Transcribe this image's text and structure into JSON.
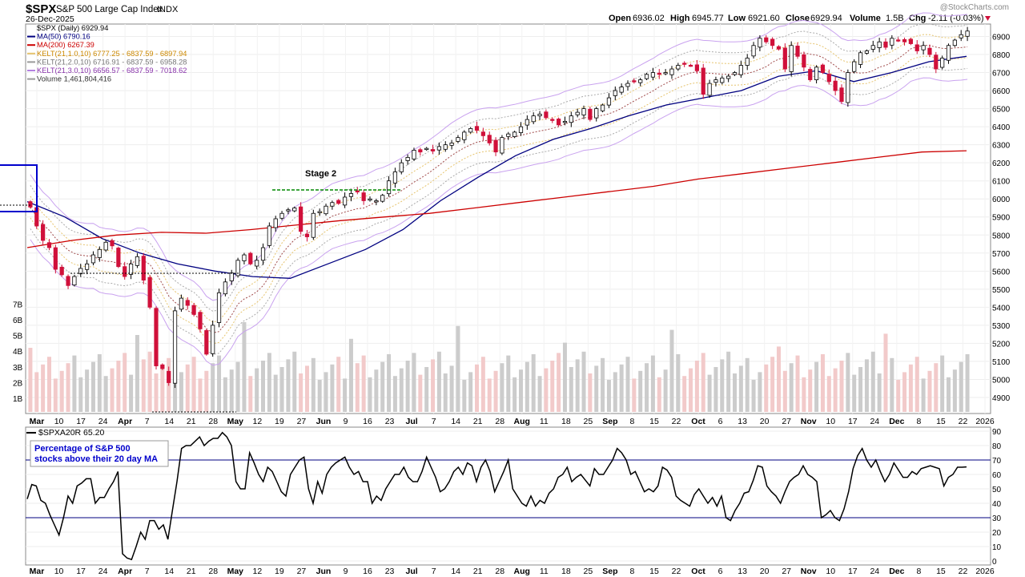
{
  "header": {
    "symbol": "$SPX",
    "name": "S&P 500 Large Cap Index",
    "exchange": "INDX",
    "date": "26-Dec-2025",
    "watermark": "@StockCharts.com",
    "quote": {
      "open_label": "Open",
      "open": "6936.02",
      "high_label": "High",
      "high": "6945.77",
      "low_label": "Low",
      "low": "6921.60",
      "close_label": "Close",
      "close": "6929.94",
      "volume_label": "Volume",
      "volume": "1.5B",
      "chg_label": "Chg",
      "chg": "-2.11 (-0.03%)"
    }
  },
  "legend": [
    {
      "text": "$SPX (Daily) 6929.94",
      "color": "#000000",
      "swatch": "none"
    },
    {
      "text": "MA(50) 6790.16",
      "color": "#000080",
      "swatch": "#000080"
    },
    {
      "text": "MA(200) 6267.39",
      "color": "#cc0000",
      "swatch": "#cc0000"
    },
    {
      "text": "KELT(21,1.0,10) 6777.25 - 6837.59 - 6897.94",
      "color": "#cc8800",
      "swatch": "#e6c46e"
    },
    {
      "text": "KELT(21,2.0,10) 6716.91 - 6837.59 - 6958.28",
      "color": "#777777",
      "swatch": "#999999"
    },
    {
      "text": "KELT(21,3.0,10) 6656.57 - 6837.59 - 7018.62",
      "color": "#8833aa",
      "swatch": "#b380e0"
    },
    {
      "text": "Volume 1,461,804,416",
      "color": "#333333",
      "swatch": "#999999"
    }
  ],
  "annotation": {
    "stage": "Stage 2"
  },
  "lower_panel": {
    "legend": "$SPXA20R 65.20",
    "note_line1": "Percentage of S&P 500",
    "note_line2": "stocks above their 20 day MA"
  },
  "colors": {
    "up": "#ffffff",
    "down": "#d0103a",
    "ma50": "#000080",
    "ma200": "#cc0000",
    "kelt1": "#e6c46e",
    "kelt2": "#aaaaaa",
    "kelt3": "#c9a2ef",
    "guide": "#000080"
  },
  "chart_data": [
    {
      "type": "line",
      "title": "$SPX S&P 500 Large Cap Index (Daily)",
      "x_ticks": [
        "Mar",
        "10",
        "17",
        "24",
        "Apr",
        "7",
        "14",
        "21",
        "28",
        "May",
        "12",
        "19",
        "27",
        "Jun",
        "9",
        "16",
        "23",
        "Jul",
        "7",
        "14",
        "21",
        "28",
        "Aug",
        "11",
        "18",
        "25",
        "Sep",
        "8",
        "15",
        "22",
        "Oct",
        "6",
        "13",
        "20",
        "27",
        "Nov",
        "10",
        "17",
        "24",
        "Dec",
        "8",
        "15",
        "22",
        "2026"
      ],
      "y_ticks": [
        4900,
        5000,
        5100,
        5200,
        5300,
        5400,
        5500,
        5600,
        5700,
        5800,
        5900,
        6000,
        6100,
        6200,
        6300,
        6400,
        6500,
        6600,
        6700,
        6800,
        6900
      ],
      "ylim": [
        4820,
        6960
      ],
      "volume_ticks": [
        "1B",
        "2B",
        "3B",
        "4B",
        "5B",
        "6B",
        "7B"
      ],
      "series": [
        {
          "name": "$SPX (Daily)",
          "values_close": [
            5955,
            5850,
            5770,
            5730,
            5610,
            5580,
            5520,
            5570,
            5615,
            5640,
            5690,
            5720,
            5760,
            5740,
            5625,
            5570,
            5640,
            5680,
            5550,
            5400,
            5075,
            5060,
            4982,
            5380,
            5450,
            5410,
            5360,
            5280,
            5140,
            5300,
            5480,
            5540,
            5590,
            5660,
            5690,
            5640,
            5660,
            5730,
            5850,
            5890,
            5920,
            5940,
            5950,
            5820,
            5790,
            5920,
            5930,
            5960,
            5980,
            5975,
            6010,
            6030,
            6040,
            5990,
            6000,
            5990,
            6020,
            6100,
            6150,
            6200,
            6230,
            6270,
            6260,
            6280,
            6265,
            6290,
            6300,
            6310,
            6340,
            6370,
            6390,
            6380,
            6350,
            6310,
            6260,
            6340,
            6360,
            6370,
            6400,
            6440,
            6460,
            6470,
            6450,
            6440,
            6410,
            6430,
            6460,
            6480,
            6500,
            6440,
            6500,
            6520,
            6560,
            6600,
            6620,
            6640,
            6650,
            6660,
            6690,
            6700,
            6690,
            6700,
            6720,
            6740,
            6750,
            6740,
            6710,
            6580,
            6640,
            6660,
            6670,
            6680,
            6700,
            6740,
            6780,
            6850,
            6890,
            6870,
            6850,
            6830,
            6720,
            6850,
            6790,
            6730,
            6660,
            6730,
            6700,
            6650,
            6600,
            6540,
            6700,
            6760,
            6810,
            6820,
            6850,
            6870,
            6840,
            6890,
            6880,
            6870,
            6860,
            6820,
            6850,
            6800,
            6720,
            6780,
            6850,
            6880,
            6910,
            6930
          ]
        },
        {
          "name": "MA(50)",
          "values": [
            5985,
            5900,
            5780,
            5700,
            5640,
            5600,
            5570,
            5560,
            5640,
            5720,
            5830,
            5990,
            6120,
            6240,
            6330,
            6390,
            6460,
            6520,
            6560,
            6600,
            6680,
            6710,
            6650,
            6700,
            6760,
            6790
          ]
        },
        {
          "name": "MA(200)",
          "values": [
            5730,
            5770,
            5800,
            5815,
            5810,
            5830,
            5855,
            5880,
            5900,
            5920,
            5950,
            5980,
            6010,
            6040,
            6070,
            6110,
            6140,
            6170,
            6200,
            6230,
            6260,
            6267
          ]
        }
      ]
    },
    {
      "type": "line",
      "title": "$SPXA20R",
      "y_ticks": [
        0,
        10,
        20,
        30,
        40,
        50,
        60,
        70,
        80,
        90
      ],
      "ylim": [
        0,
        90
      ],
      "guides": [
        30,
        70
      ],
      "series": [
        {
          "name": "$SPXA20R",
          "values": [
            43,
            53,
            52,
            42,
            40,
            32,
            25,
            18,
            30,
            45,
            40,
            52,
            54,
            57,
            57,
            40,
            44,
            44,
            50,
            55,
            62,
            5,
            2,
            1,
            10,
            20,
            15,
            28,
            28,
            22,
            25,
            15,
            35,
            55,
            78,
            80,
            80,
            83,
            86,
            80,
            83,
            85,
            85,
            89,
            86,
            80,
            55,
            50,
            50,
            75,
            68,
            60,
            55,
            65,
            62,
            55,
            48,
            45,
            60,
            65,
            70,
            72,
            50,
            40,
            55,
            47,
            60,
            65,
            68,
            70,
            72,
            65,
            60,
            62,
            55,
            55,
            40,
            45,
            42,
            50,
            55,
            60,
            60,
            65,
            58,
            55,
            55,
            62,
            72,
            65,
            58,
            48,
            50,
            55,
            62,
            65,
            60,
            68,
            66,
            55,
            65,
            70,
            62,
            48,
            55,
            62,
            70,
            50,
            45,
            40,
            38,
            45,
            38,
            42,
            40,
            47,
            50,
            58,
            60,
            65,
            55,
            58,
            60,
            56,
            52,
            64,
            60,
            60,
            65,
            70,
            78,
            75,
            70,
            60,
            62,
            55,
            48,
            50,
            48,
            52,
            65,
            63,
            58,
            45,
            42,
            40,
            38,
            46,
            50,
            45,
            40,
            44,
            38,
            45,
            30,
            28,
            35,
            40,
            47,
            48,
            56,
            66,
            65,
            52,
            48,
            45,
            40,
            48,
            55,
            58,
            60,
            66,
            60,
            58,
            55,
            30,
            32,
            35,
            30,
            28,
            36,
            48,
            64,
            73,
            78,
            70,
            65,
            70,
            62,
            55,
            60,
            68,
            63,
            58,
            58,
            62,
            60,
            64,
            65,
            66,
            65,
            64,
            52,
            58,
            60,
            65,
            65,
            65.2
          ]
        }
      ]
    }
  ]
}
